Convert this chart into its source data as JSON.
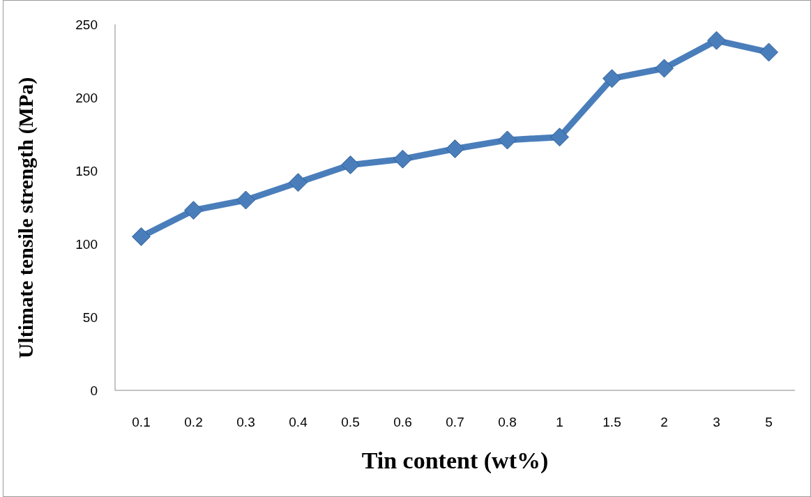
{
  "chart_data": {
    "type": "line",
    "xlabel": "Tin content (wt%)",
    "ylabel": "Ultimate tensile strength (MPa)",
    "categories": [
      "0.1",
      "0.2",
      "0.3",
      "0.4",
      "0.5",
      "0.6",
      "0.7",
      "0.8",
      "1",
      "1.5",
      "2",
      "3",
      "5"
    ],
    "series": [
      {
        "color": "#4a7ebb",
        "values": [
          105,
          123,
          130,
          142,
          154,
          158,
          165,
          171,
          173,
          213,
          220,
          239,
          231
        ]
      }
    ],
    "ylim": [
      0,
      250
    ],
    "yticks": [
      0,
      50,
      100,
      150,
      200,
      250
    ],
    "grid": false,
    "marker": "diamond",
    "line_style": "solid"
  }
}
